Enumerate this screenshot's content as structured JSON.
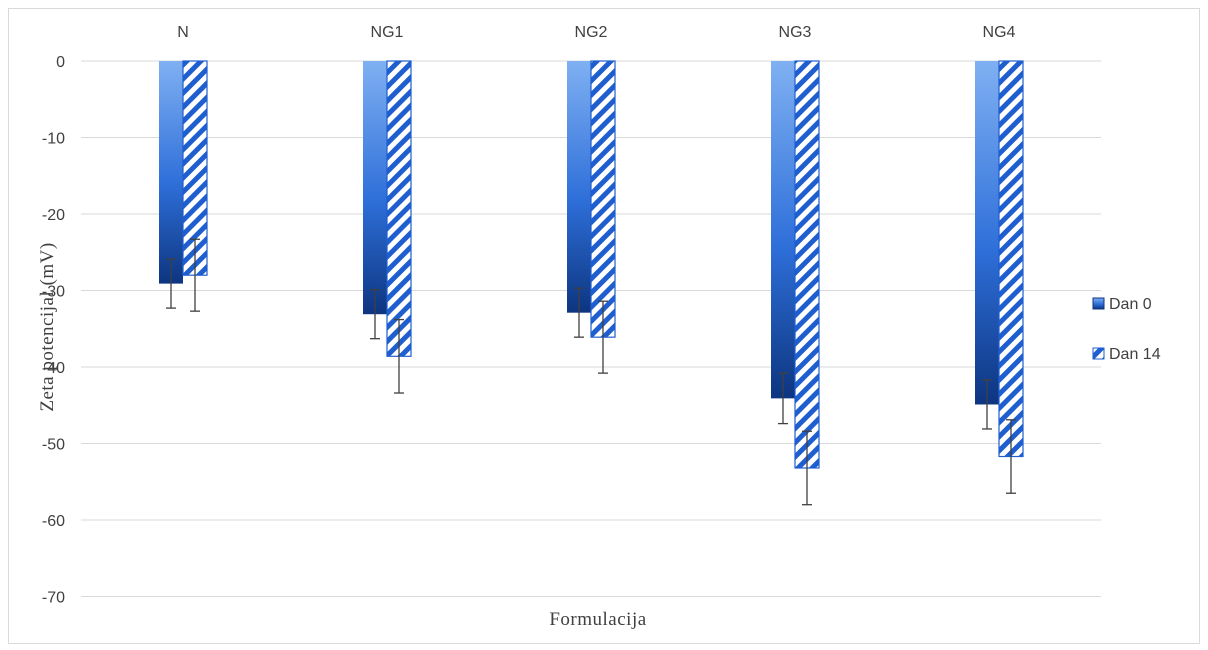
{
  "chart_data": {
    "type": "bar",
    "title": "",
    "xlabel": "Formulacija",
    "ylabel": "Zeta potencijal (mV)",
    "categories": [
      "N",
      "NG1",
      "NG2",
      "NG3",
      "NG4"
    ],
    "series": [
      {
        "name": "Dan 0",
        "values": [
          -29.1,
          -33.1,
          -32.9,
          -44.1,
          -44.9
        ],
        "errors": [
          3.2,
          3.2,
          3.2,
          3.3,
          3.2
        ],
        "fill": "gradient-blue",
        "color": "#2e6fd9",
        "color_dark": "#0d3580",
        "color_light": "#7fb0f2"
      },
      {
        "name": "Dan 14",
        "values": [
          -28.0,
          -38.6,
          -36.1,
          -53.2,
          -51.7
        ],
        "errors": [
          4.7,
          4.8,
          4.7,
          4.8,
          4.8
        ],
        "fill": "diagonal-stripes",
        "color": "#1f5ecf"
      }
    ],
    "ylim": [
      -70,
      0
    ],
    "yticks": [
      0,
      -10,
      -20,
      -30,
      -40,
      -50,
      -60,
      -70
    ],
    "category_axis_position": "top",
    "grid": true,
    "gridline_color": "#d9d9d9",
    "errorbar_color": "#404040",
    "legend": "right"
  }
}
